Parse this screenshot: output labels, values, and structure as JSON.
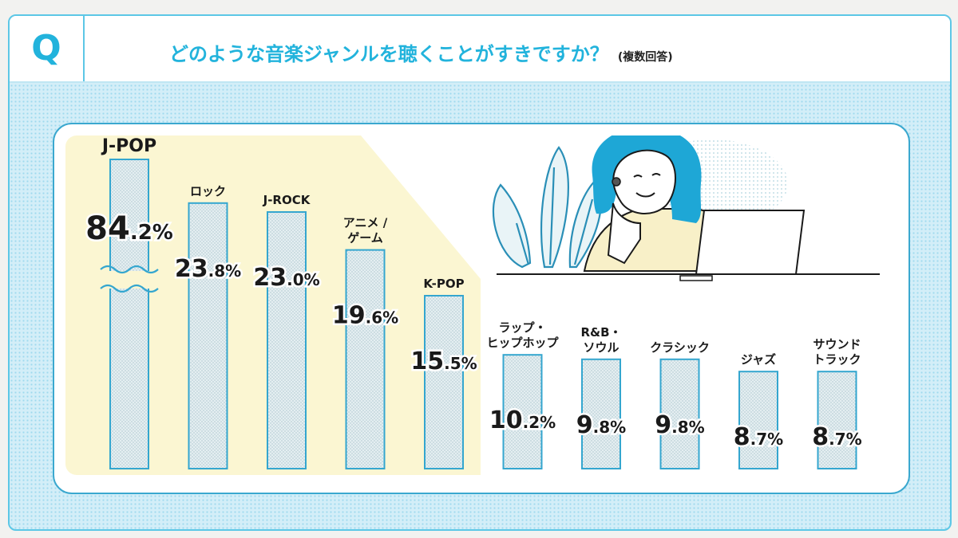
{
  "header": {
    "q_label": "Q",
    "question": "どのような音楽ジャンルを聴くことがすきですか？",
    "note": "(複数回答)"
  },
  "colors": {
    "accent": "#22b3dc",
    "frame": "#3aa8cf",
    "bar_fill": "#dfe9ec",
    "bar_stroke": "#34a6cf",
    "highlight": "#fbf6d2",
    "dots_bg": "#d3eef8"
  },
  "illustration": {
    "name": "woman-with-laptop-illustration"
  },
  "chart_data": {
    "type": "bar",
    "axis_break": true,
    "broken_category": "J-POP",
    "categories": [
      [
        "J-POP"
      ],
      [
        "ロック"
      ],
      [
        "J-ROCK"
      ],
      [
        "アニメ /",
        "ゲーム"
      ],
      [
        "K-POP"
      ],
      [
        "ラップ・",
        "ヒップホップ"
      ],
      [
        "R&B・",
        "ソウル"
      ],
      [
        "クラシック"
      ],
      [
        "ジャズ"
      ],
      [
        "サウンド",
        "トラック"
      ]
    ],
    "values": [
      84.2,
      23.8,
      23.0,
      19.6,
      15.5,
      10.2,
      9.8,
      9.8,
      8.7,
      8.7
    ],
    "value_parts": [
      [
        "84",
        ".2%"
      ],
      [
        "23",
        ".8%"
      ],
      [
        "23",
        ".0%"
      ],
      [
        "19",
        ".6%"
      ],
      [
        "15",
        ".5%"
      ],
      [
        "10",
        ".2%"
      ],
      [
        "9",
        ".8%"
      ],
      [
        "9",
        ".8%"
      ],
      [
        "8",
        ".7%"
      ],
      [
        "8",
        ".7%"
      ]
    ],
    "title": "",
    "xlabel": "",
    "ylabel": "",
    "grid": false,
    "legend": "none"
  }
}
